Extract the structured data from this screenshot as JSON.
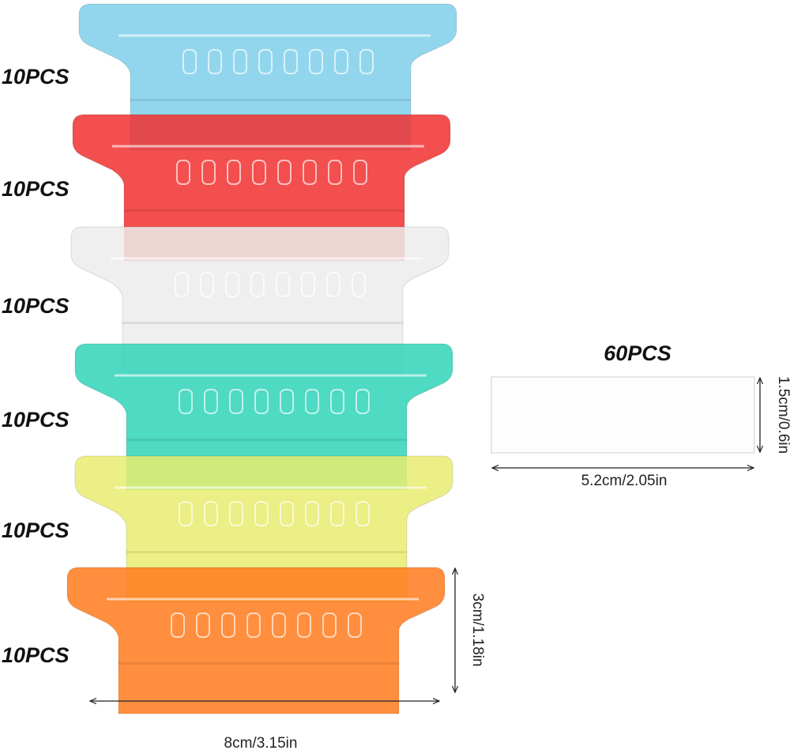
{
  "tabs": [
    {
      "label": "10PCS"
    },
    {
      "label": "10PCS"
    },
    {
      "label": "10PCS"
    },
    {
      "label": "10PCS"
    },
    {
      "label": "10PCS"
    },
    {
      "label": "10PCS"
    }
  ],
  "insert": {
    "label": "60PCS",
    "height": "1.5cm/0.6in",
    "width": "5.2cm/2.05in"
  },
  "tab_dimensions": {
    "height": "3cm/1.18in",
    "width": "8cm/3.15in"
  }
}
